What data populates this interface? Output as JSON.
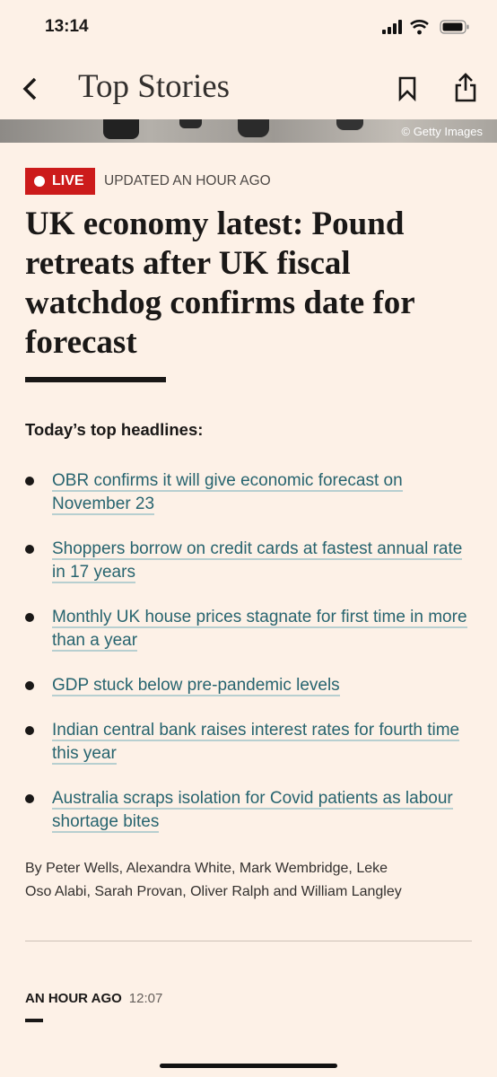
{
  "status_bar": {
    "time": "13:14"
  },
  "nav": {
    "title": "Top Stories"
  },
  "image": {
    "credit": "© Getty Images"
  },
  "article": {
    "badge": "LIVE",
    "updated": "UPDATED AN HOUR AGO",
    "headline": "UK economy latest: Pound retreats after UK fiscal watchdog confirms date for forecast",
    "section_title": "Today’s top headlines:",
    "headlines": [
      "OBR confirms it will give economic forecast on November 23",
      "Shoppers borrow on credit cards at fastest annual rate in 17 years",
      "Monthly UK house prices stagnate for first time in more than a year",
      "GDP stuck below pre-pandemic levels",
      "Indian central bank raises interest rates for fourth time this year",
      "Australia scraps isolation for Covid patients as labour shortage bites"
    ],
    "byline": "By Peter Wells, Alexandra White, Mark Wembridge, Leke Oso Alabi, Sarah Provan, Oliver Ralph and William Langley",
    "post": {
      "time_ago": "AN HOUR AGO",
      "time": "12:07"
    }
  }
}
